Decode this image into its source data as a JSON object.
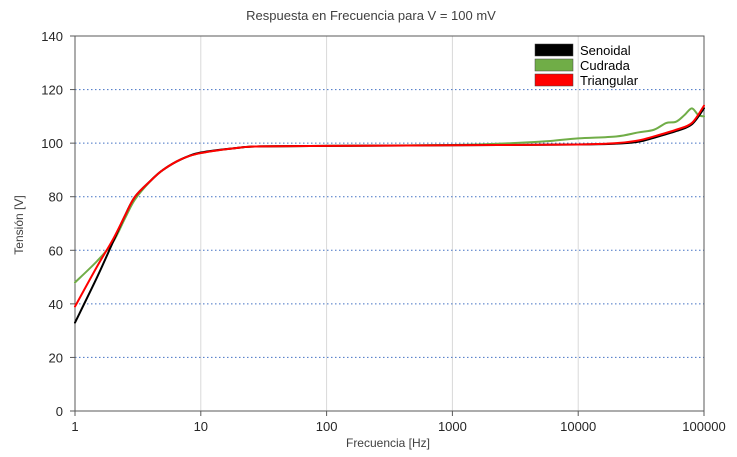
{
  "chart_data": {
    "type": "line",
    "title": "Respuesta en Frecuencia para V = 100 mV",
    "xlabel": "Frecuencia [Hz]",
    "ylabel": "Tensión [V]",
    "xscale": "log",
    "xlim": [
      1,
      100000
    ],
    "ylim": [
      0,
      140
    ],
    "xticks": [
      1,
      10,
      100,
      1000,
      10000,
      100000
    ],
    "xtick_labels": [
      "1",
      "10",
      "100",
      "1000",
      "10000",
      "100000"
    ],
    "yticks": [
      0,
      20,
      40,
      60,
      80,
      100,
      120,
      140
    ],
    "ytick_labels": [
      "0",
      "20",
      "40",
      "60",
      "80",
      "100",
      "120",
      "140"
    ],
    "grid": "x-major solid, y-major dotted",
    "legend_position": "top-right",
    "series": [
      {
        "name": "Senoidal",
        "color": "#000000",
        "points": [
          [
            1,
            33
          ],
          [
            1.5,
            50
          ],
          [
            2,
            63
          ],
          [
            2.5,
            73
          ],
          [
            3,
            80
          ],
          [
            4,
            86
          ],
          [
            5,
            90
          ],
          [
            7,
            94
          ],
          [
            10,
            96.5
          ],
          [
            20,
            98.3
          ],
          [
            30,
            98.8
          ],
          [
            100,
            99
          ],
          [
            1000,
            99.2
          ],
          [
            10000,
            99.5
          ],
          [
            20000,
            99.8
          ],
          [
            30000,
            100.5
          ],
          [
            40000,
            102
          ],
          [
            60000,
            104.5
          ],
          [
            80000,
            107
          ],
          [
            100000,
            113
          ]
        ]
      },
      {
        "name": "Cudrada",
        "color": "#70ad47",
        "points": [
          [
            1,
            48
          ],
          [
            1.5,
            56
          ],
          [
            2,
            63
          ],
          [
            2.5,
            72
          ],
          [
            3,
            79
          ],
          [
            4,
            86
          ],
          [
            5,
            90
          ],
          [
            7,
            94
          ],
          [
            10,
            96.3
          ],
          [
            20,
            98.3
          ],
          [
            30,
            98.8
          ],
          [
            100,
            99
          ],
          [
            1000,
            99.3
          ],
          [
            3000,
            100
          ],
          [
            6000,
            100.8
          ],
          [
            10000,
            101.8
          ],
          [
            20000,
            102.5
          ],
          [
            30000,
            104
          ],
          [
            40000,
            105
          ],
          [
            50000,
            107.5
          ],
          [
            60000,
            108
          ],
          [
            70000,
            110.5
          ],
          [
            80000,
            113
          ],
          [
            90000,
            110.5
          ],
          [
            100000,
            110
          ]
        ]
      },
      {
        "name": "Triangular",
        "color": "#ff0000",
        "points": [
          [
            1,
            39
          ],
          [
            1.5,
            54
          ],
          [
            2,
            64
          ],
          [
            2.5,
            73
          ],
          [
            3,
            80
          ],
          [
            4,
            86
          ],
          [
            5,
            90
          ],
          [
            7,
            94
          ],
          [
            10,
            96.3
          ],
          [
            20,
            98.3
          ],
          [
            30,
            98.8
          ],
          [
            100,
            99
          ],
          [
            1000,
            99.2
          ],
          [
            10000,
            99.5
          ],
          [
            20000,
            100
          ],
          [
            30000,
            101
          ],
          [
            40000,
            102.5
          ],
          [
            60000,
            105
          ],
          [
            80000,
            107.5
          ],
          [
            100000,
            114
          ]
        ]
      }
    ]
  }
}
